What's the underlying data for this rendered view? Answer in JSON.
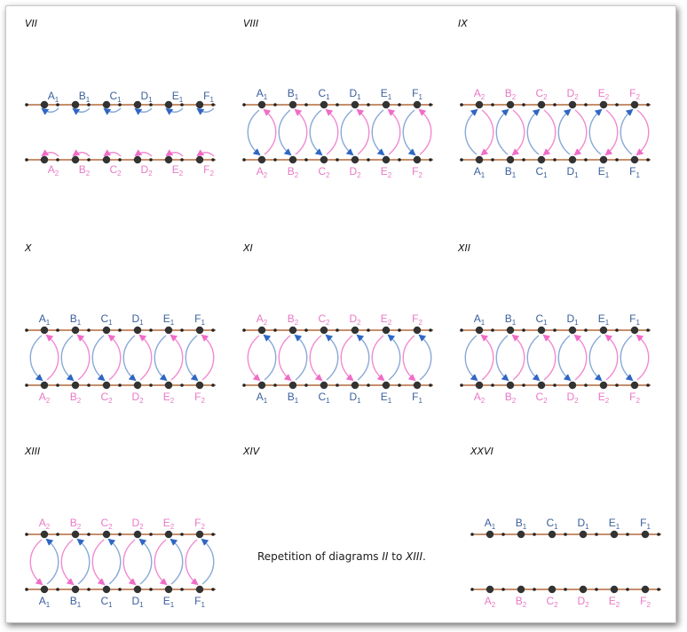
{
  "colors": {
    "top_label": "#3a5f9c",
    "bottom_label": "#e879c6",
    "line": "#b46a3c",
    "node": "#333333",
    "blue_arrow": "#89a9d8",
    "pink_arrow": "#f28ad0",
    "blue_head": "#2f66c4",
    "pink_head": "#f06cc8"
  },
  "row1_labels": [
    "A1",
    "B1",
    "C1",
    "D1",
    "E1",
    "F1"
  ],
  "row2_labels": [
    "A2",
    "B2",
    "C2",
    "D2",
    "E2",
    "F2"
  ],
  "panels": [
    {
      "title": "VII",
      "row1_labels": "row1_labels",
      "row2_labels": "row2_labels",
      "mode": "local"
    },
    {
      "title": "VIII",
      "mode": "down-up",
      "top": "row1_labels",
      "bottom": "row2_labels"
    },
    {
      "title": "IX",
      "mode": "up-pinkdown",
      "top": "row2_labels",
      "bottom": "row1_labels"
    },
    {
      "title": "X",
      "mode": "down-up",
      "top": "row1_labels",
      "bottom": "row2_labels"
    },
    {
      "title": "XI",
      "mode": "pinkdown-up",
      "top": "row2_labels",
      "bottom": "row1_labels"
    },
    {
      "title": "XII",
      "mode": "down-up",
      "top": "row1_labels",
      "bottom": "row2_labels"
    },
    {
      "title": "XIII",
      "mode": "pinkdown-up",
      "top": "row2_labels",
      "bottom": "row1_labels"
    },
    {
      "title": "XIV",
      "mode": "text"
    },
    {
      "title": "XXVI",
      "mode": "plain",
      "top": "row1_labels",
      "bottom": "row2_labels"
    }
  ],
  "note": {
    "text_before": "Repetition of diagrams ",
    "italic1": "II",
    "text_mid": " to ",
    "italic2": "XIII",
    "text_after": "."
  }
}
